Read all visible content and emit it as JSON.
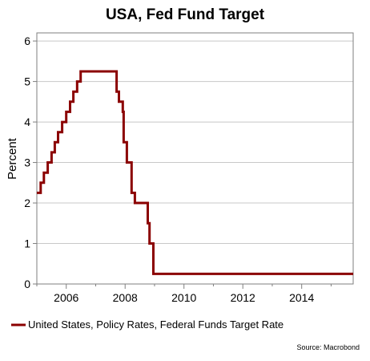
{
  "chart_data": {
    "type": "line",
    "title": "USA, Fed Fund Target",
    "xlabel": "",
    "ylabel": "Percent",
    "xlim": [
      2005.0,
      2015.75
    ],
    "ylim": [
      0,
      6.2
    ],
    "x_ticks": [
      2006,
      2008,
      2010,
      2012,
      2014
    ],
    "y_ticks": [
      0,
      1,
      2,
      3,
      4,
      5,
      6
    ],
    "grid": "horizontal",
    "legend_position": "bottom-left",
    "colors": {
      "series": "#8b0000"
    },
    "series": [
      {
        "name": "United States, Policy Rates, Federal Funds Target Rate",
        "step": true,
        "x": [
          2005.0,
          2005.13,
          2005.24,
          2005.37,
          2005.5,
          2005.61,
          2005.72,
          2005.86,
          2006.0,
          2006.13,
          2006.24,
          2006.37,
          2006.49,
          2007.71,
          2007.79,
          2007.92,
          2007.95,
          2008.06,
          2008.22,
          2008.33,
          2008.77,
          2008.83,
          2008.96,
          2015.75
        ],
        "values": [
          2.25,
          2.5,
          2.75,
          3.0,
          3.25,
          3.5,
          3.75,
          4.0,
          4.25,
          4.5,
          4.75,
          5.0,
          5.25,
          4.75,
          4.5,
          4.25,
          3.5,
          3.0,
          2.25,
          2.0,
          1.5,
          1.0,
          0.25,
          0.25
        ]
      }
    ]
  },
  "source": "Source: Macrobond"
}
